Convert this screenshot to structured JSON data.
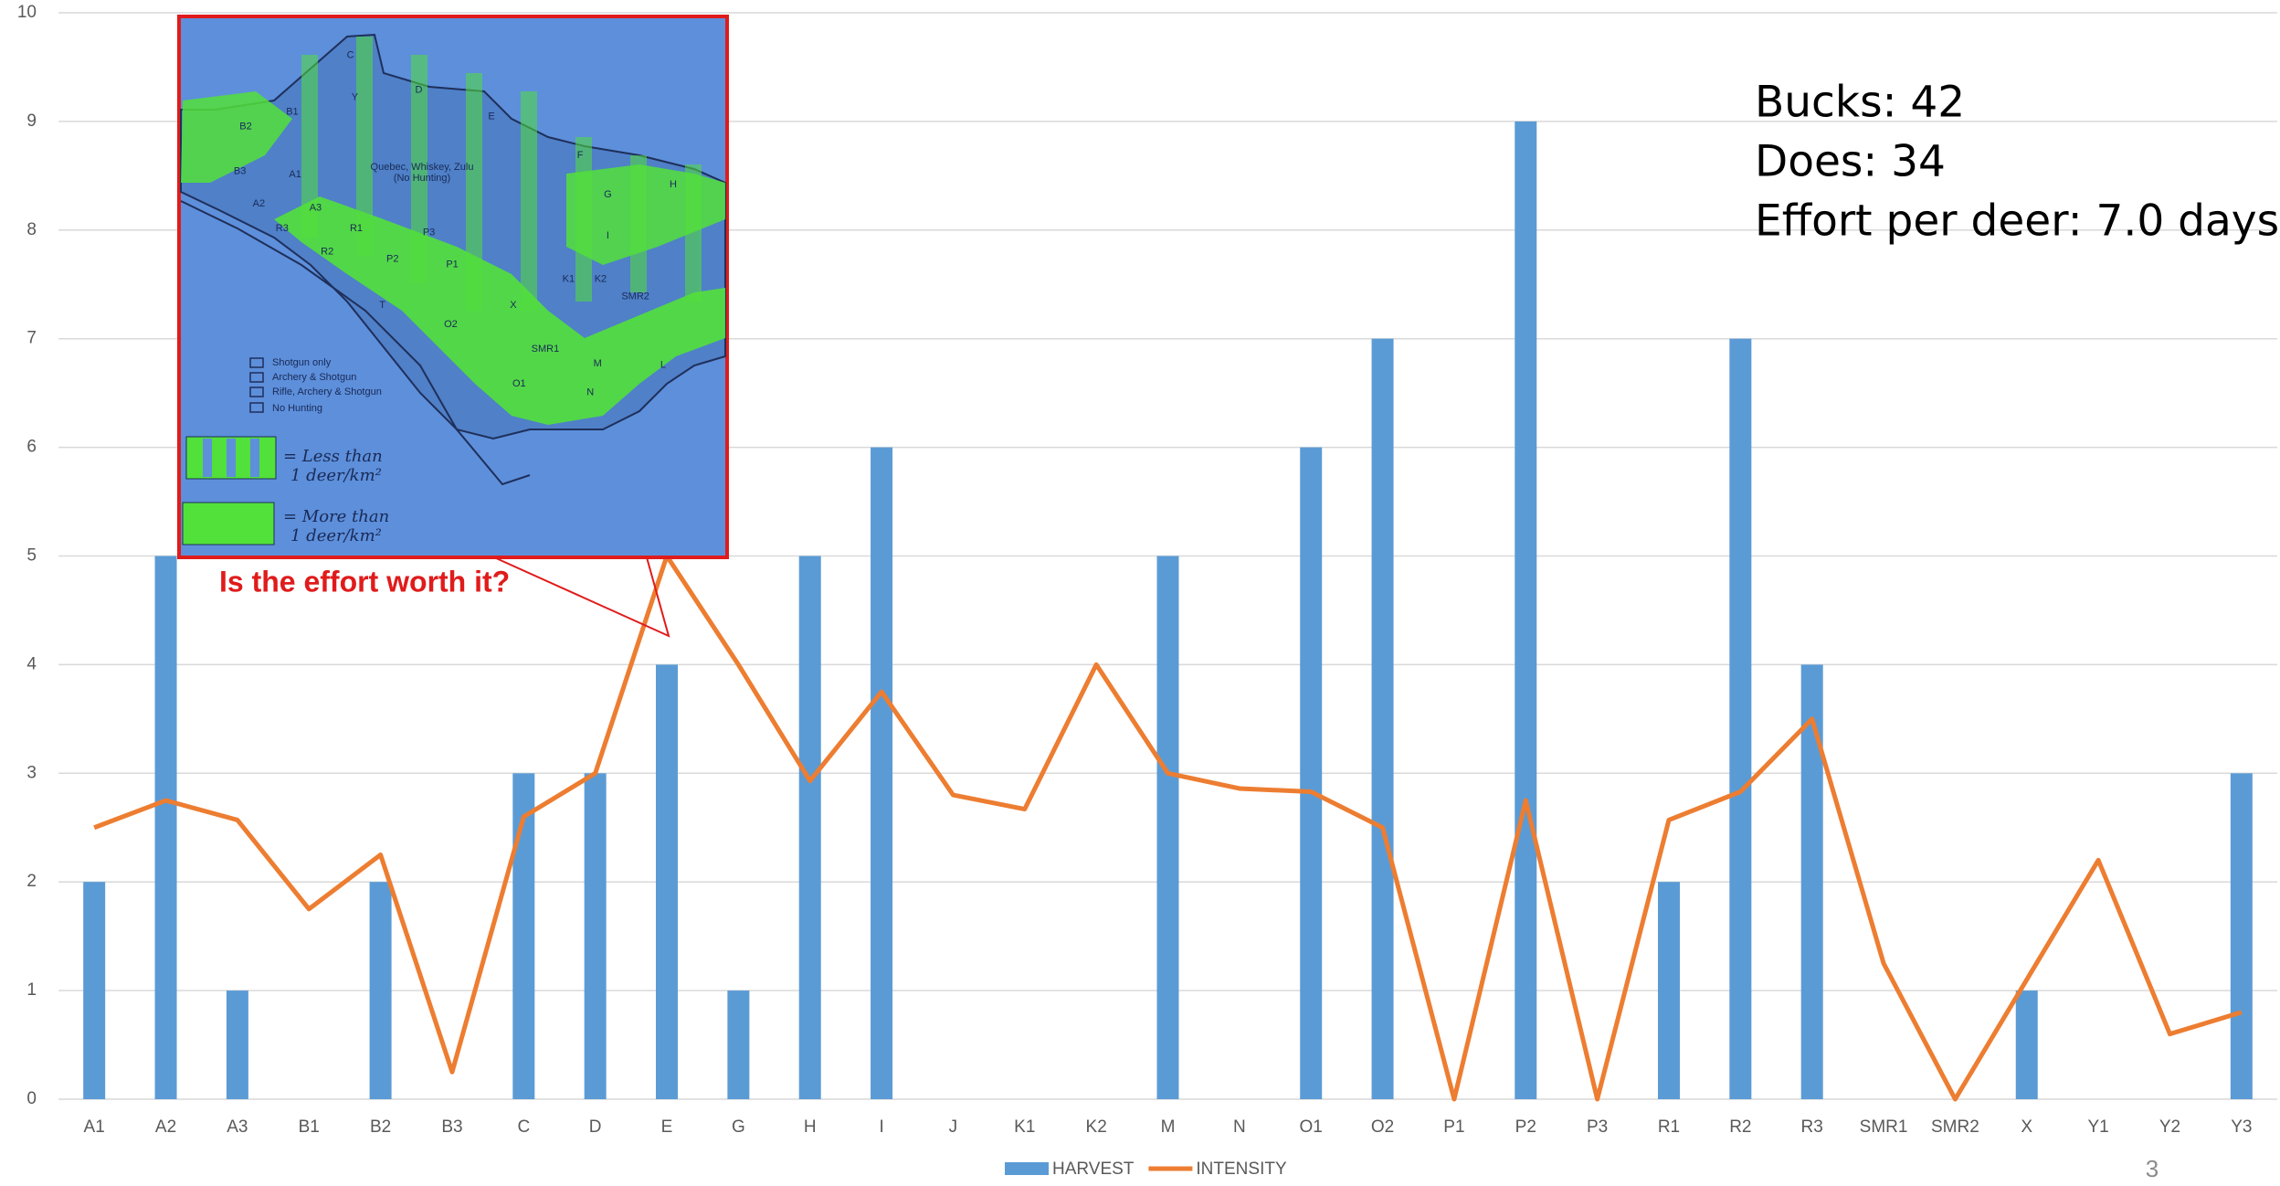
{
  "chart_data": {
    "type": "bar",
    "categories": [
      "A1",
      "A2",
      "A3",
      "B1",
      "B2",
      "B3",
      "C",
      "D",
      "E",
      "G",
      "H",
      "I",
      "J",
      "K1",
      "K2",
      "M",
      "N",
      "O1",
      "O2",
      "P1",
      "P2",
      "P3",
      "R1",
      "R2",
      "R3",
      "SMR1",
      "SMR2",
      "X",
      "Y1",
      "Y2",
      "Y3"
    ],
    "series": [
      {
        "name": "HARVEST",
        "type": "bar",
        "color": "#5b9bd5",
        "values": [
          2,
          5,
          1,
          0,
          2,
          0,
          3,
          3,
          4,
          1,
          5,
          6,
          0,
          0,
          0,
          5,
          0,
          6,
          7,
          0,
          9,
          0,
          2,
          7,
          4,
          0,
          0,
          1,
          0,
          0,
          3
        ]
      },
      {
        "name": "INTENSITY",
        "type": "line",
        "color": "#ed7d31",
        "values": [
          2.5,
          2.75,
          2.57,
          1.75,
          2.25,
          0.25,
          2.6,
          3.0,
          5.0,
          4.0,
          2.93,
          3.75,
          2.8,
          2.67,
          4.0,
          3.0,
          2.86,
          2.83,
          2.5,
          0,
          2.75,
          0,
          2.57,
          2.83,
          3.5,
          1.25,
          0,
          1.1,
          2.2,
          0.6,
          0.8
        ]
      }
    ],
    "ylim": [
      0,
      10
    ],
    "yticks": [
      0,
      1,
      2,
      3,
      4,
      5,
      6,
      7,
      8,
      9,
      10
    ],
    "grid": true,
    "legend": "bottom",
    "annotations": [
      "Bucks: 42",
      "Does: 34",
      "Effort per deer: 7.0 days",
      "Is the effort worth it?"
    ],
    "page_number": "3"
  },
  "inset": {
    "regions": [
      "C",
      "Y",
      "D",
      "E",
      "B1",
      "B2",
      "B3",
      "A1",
      "A2",
      "A3",
      "R1",
      "R3",
      "P3",
      "R2",
      "P2",
      "P1",
      "F",
      "G",
      "H",
      "I",
      "K1",
      "K2",
      "SMR2",
      "X",
      "O2",
      "SMR1",
      "M",
      "L",
      "O1",
      "N",
      "T"
    ],
    "labels": [
      "Quebec, Whiskey, Zulu",
      "(No Hunting)",
      "Shotgun only",
      "Archery & Shotgun",
      "Rifle, Archery & Shotgun",
      "No Hunting"
    ],
    "handwritten": [
      "= Less than",
      "1 deer/km²",
      "= More than",
      "1 deer/km²"
    ]
  }
}
